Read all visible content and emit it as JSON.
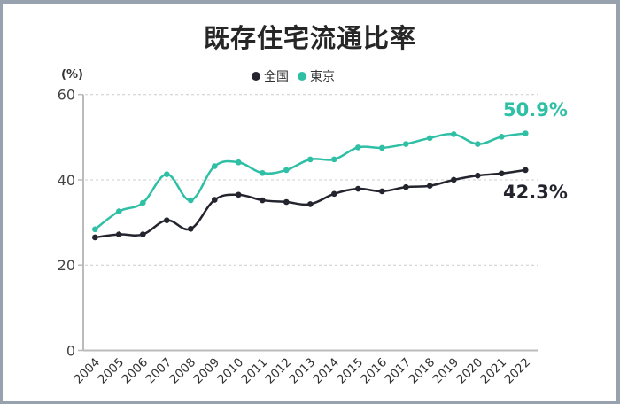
{
  "title": "既存住宅流通比率",
  "unit_label": "(%)",
  "legend": [
    {
      "label": "全国",
      "color": "#24242f"
    },
    {
      "label": "東京",
      "color": "#2ebfa5"
    }
  ],
  "annotations": {
    "tokyo_last": "50.9%",
    "national_last": "42.3%"
  },
  "colors": {
    "national": "#24242f",
    "tokyo": "#2ebfa5",
    "grid": "#cccccc",
    "axis": "#bbbbbb",
    "frame": "#98a2ae"
  },
  "chart_data": {
    "type": "line",
    "title": "既存住宅流通比率",
    "xlabel": "",
    "ylabel": "(%)",
    "ylim": [
      0,
      60
    ],
    "yticks": [
      0,
      20,
      40,
      60
    ],
    "grid": "horizontal dashed",
    "legend_position": "top center",
    "categories": [
      "2004",
      "2005",
      "2006",
      "2007",
      "2008",
      "2009",
      "2010",
      "2011",
      "2012",
      "2013",
      "2014",
      "2015",
      "2016",
      "2017",
      "2018",
      "2019",
      "2020",
      "2021",
      "2022"
    ],
    "series": [
      {
        "name": "全国",
        "color": "#24242f",
        "values": [
          26.5,
          27.2,
          27.2,
          30.5,
          28.5,
          35.3,
          36.5,
          35.2,
          34.8,
          34.3,
          36.7,
          37.9,
          37.3,
          38.3,
          38.6,
          40.0,
          41.0,
          41.5,
          42.3
        ]
      },
      {
        "name": "東京",
        "color": "#2ebfa5",
        "values": [
          28.4,
          32.6,
          34.6,
          41.3,
          35.2,
          43.2,
          44.1,
          41.6,
          42.3,
          44.8,
          44.8,
          47.6,
          47.5,
          48.4,
          49.8,
          50.7,
          48.4,
          50.1,
          50.9
        ]
      }
    ],
    "annotations": [
      {
        "text": "50.9%",
        "series": "東京",
        "x": "2022"
      },
      {
        "text": "42.3%",
        "series": "全国",
        "x": "2022"
      }
    ]
  }
}
